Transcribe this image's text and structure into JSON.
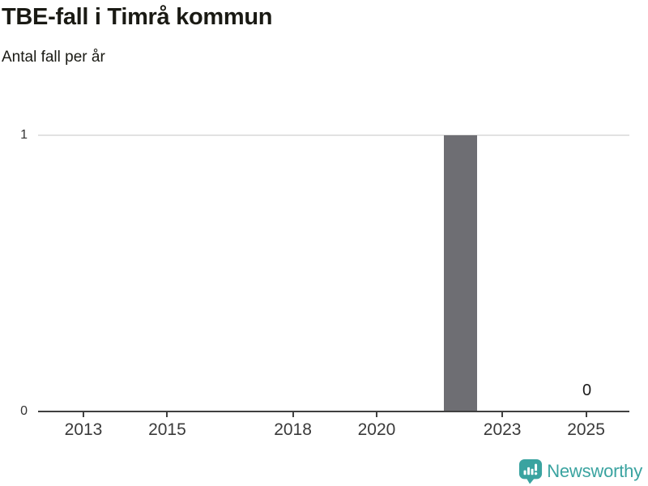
{
  "chart": {
    "title": "TBE-fall i Timrå kommun",
    "subtitle": "Antal fall per år"
  },
  "chart_data": {
    "type": "bar",
    "title": "TBE-fall i Timrå kommun",
    "subtitle": "Antal fall per år",
    "x": [
      2012,
      2013,
      2014,
      2015,
      2016,
      2017,
      2018,
      2019,
      2020,
      2021,
      2022,
      2023,
      2024,
      2025
    ],
    "values": [
      0,
      0,
      0,
      0,
      0,
      0,
      0,
      0,
      0,
      0,
      1,
      0,
      0,
      0
    ],
    "series_name": "Antal fall",
    "x_tick_labels": [
      "2013",
      "2015",
      "2018",
      "2020",
      "2023",
      "2025"
    ],
    "x_tick_years": [
      2013,
      2015,
      2018,
      2020,
      2023,
      2025
    ],
    "y_ticks": [
      0,
      1
    ],
    "y_tick_labels": [
      "0",
      "1"
    ],
    "ylim": [
      0,
      1
    ],
    "grid": true,
    "legend": "none",
    "bar_color": "#6e6e73",
    "grid_color": "#e2e2e2",
    "axis_color": "#404040",
    "annotation": {
      "year": 2025,
      "label": "0"
    }
  },
  "footer": {
    "brand": "Newsworthy",
    "brand_color": "#3aa3a0",
    "logo_icon": "newsworthy-bar-chart-bubble-icon"
  }
}
